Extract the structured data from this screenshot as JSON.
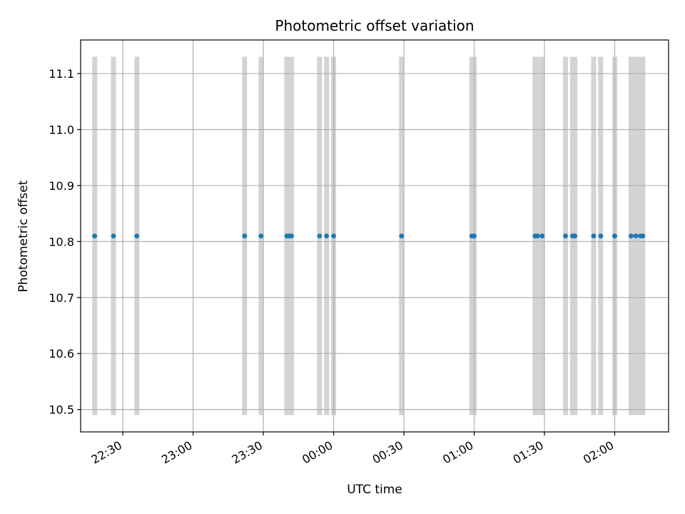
{
  "chart_data": {
    "type": "scatter",
    "title": "Photometric offset variation",
    "xlabel": "UTC time",
    "ylabel": "Photometric offset",
    "x_is_time": true,
    "xlim": [
      "22:12",
      "02:23"
    ],
    "ylim": [
      10.46,
      11.16
    ],
    "x_ticks": [
      "22:30",
      "23:00",
      "23:30",
      "00:00",
      "00:30",
      "01:00",
      "01:30",
      "02:00"
    ],
    "y_ticks": [
      10.5,
      10.6,
      10.7,
      10.8,
      10.9,
      11.0,
      11.1
    ],
    "grid": true,
    "marker_color": "#1f77b4",
    "band_color": "#d3d3d3",
    "exposure_band_range": [
      10.49,
      11.13
    ],
    "series": [
      {
        "times": [
          "22:18",
          "22:26",
          "22:36",
          "23:22",
          "23:29",
          "23:40",
          "23:41",
          "23:42",
          "23:54",
          "23:57",
          "00:00",
          "00:29",
          "00:59",
          "01:00",
          "01:26",
          "01:27",
          "01:29",
          "01:39",
          "01:42",
          "01:43",
          "01:51",
          "01:54",
          "02:00",
          "02:07",
          "02:09",
          "02:11",
          "02:12"
        ],
        "values": [
          10.81,
          10.81,
          10.81,
          10.81,
          10.81,
          10.81,
          10.81,
          10.81,
          10.81,
          10.81,
          10.81,
          10.81,
          10.81,
          10.81,
          10.81,
          10.81,
          10.81,
          10.81,
          10.81,
          10.81,
          10.81,
          10.81,
          10.81,
          10.81,
          10.81,
          10.81,
          10.81
        ]
      }
    ]
  }
}
